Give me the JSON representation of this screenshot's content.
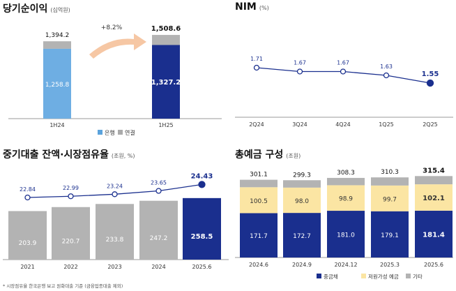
{
  "chart_data": [
    {
      "type": "bar",
      "title": "당기순이익",
      "unit": "(십억원)",
      "categories": [
        "1H24",
        "1H25"
      ],
      "series": [
        {
          "name": "은행",
          "values": [
            1258.8,
            1327.2
          ],
          "color_by_category": [
            "#6eaee3",
            "#1a2f8e"
          ]
        },
        {
          "name": "연결",
          "totals": [
            1394.2,
            1508.6
          ],
          "color": "#b3b3b3"
        }
      ],
      "value_labels": {
        "bank": [
          "1,258.8",
          "1,327.2"
        ],
        "total": [
          "1,394.2",
          "1,508.6"
        ]
      },
      "annotation": "+8.2%",
      "legend": [
        "은행",
        "연결"
      ],
      "legend_colors": [
        "#5ba3dc",
        "#aaaaaa"
      ]
    },
    {
      "type": "line",
      "title": "NIM",
      "unit": "(%)",
      "categories": [
        "2Q24",
        "3Q24",
        "4Q24",
        "1Q25",
        "2Q25"
      ],
      "values": [
        1.71,
        1.67,
        1.67,
        1.63,
        1.55
      ],
      "labels": [
        "1.71",
        "1.67",
        "1.67",
        "1.63",
        "1.55"
      ],
      "color": "#1a2f8e"
    },
    {
      "type": "bar",
      "title": "중기대출 잔액·시장점유율",
      "unit": "(조원, %)",
      "categories": [
        "2021",
        "2022",
        "2023",
        "2024",
        "2025.6"
      ],
      "bar_values": [
        203.9,
        220.7,
        233.8,
        247.2,
        258.5
      ],
      "bar_labels": [
        "203.9",
        "220.7",
        "233.8",
        "247.2",
        "258.5"
      ],
      "share_values": [
        22.84,
        22.99,
        23.24,
        23.65,
        24.43
      ],
      "share_labels": [
        "22.84",
        "22.99",
        "23.24",
        "23.65",
        "24.43"
      ],
      "colors": {
        "bar": "#b3b3b3",
        "bar_last": "#1a2f8e",
        "line": "#1a2f8e"
      },
      "footnote": "* 시장점유율 한국은행 보고 원화대출 기준 (금융업종대출 제외)"
    },
    {
      "type": "bar",
      "title": "총예금 구성",
      "unit": "(조원)",
      "categories": [
        "2024.6",
        "2024.9",
        "2024.12",
        "2025.3",
        "2025.6"
      ],
      "series": [
        {
          "name": "중금채",
          "values": [
            171.7,
            172.7,
            181.0,
            179.1,
            181.4
          ],
          "labels": [
            "171.7",
            "172.7",
            "181.0",
            "179.1",
            "181.4"
          ],
          "color": "#1a2f8e"
        },
        {
          "name": "저원가성 예금",
          "values": [
            100.5,
            98.0,
            98.9,
            99.7,
            102.1
          ],
          "labels": [
            "100.5",
            "98.0",
            "98.9",
            "99.7",
            "102.1"
          ],
          "color": "#fbe5a3"
        },
        {
          "name": "기타",
          "values": [
            28.9,
            28.6,
            28.4,
            31.5,
            31.9
          ],
          "color": "#b3b3b3"
        }
      ],
      "totals": [
        301.1,
        299.3,
        308.3,
        310.3,
        315.4
      ],
      "total_labels": [
        "301.1",
        "299.3",
        "308.3",
        "310.3",
        "315.4"
      ],
      "legend": [
        "중금채",
        "저원가성 예금",
        "기타"
      ]
    }
  ]
}
